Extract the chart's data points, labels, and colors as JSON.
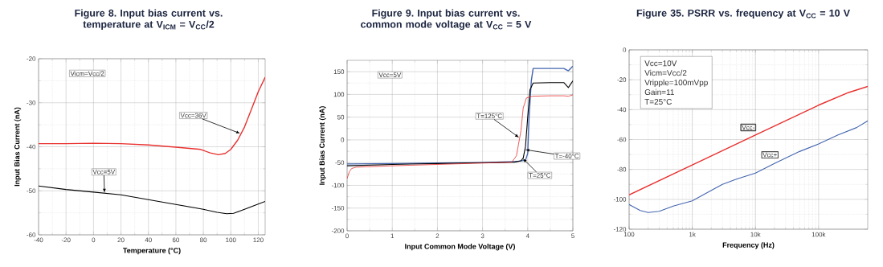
{
  "chart_data": [
    {
      "type": "line",
      "title": "Figure 8. Input bias current vs. temperature at V$_{ICM}$ = V$_{CC}$/2",
      "xlabel": "Temperature (°C)",
      "ylabel": "Input Bias Current (nA)",
      "xlim": [
        -40,
        125
      ],
      "xticks": [
        -40,
        -20,
        0,
        20,
        40,
        60,
        80,
        100,
        120
      ],
      "ylim": [
        -60,
        -20
      ],
      "yticks": [
        -60,
        -50,
        -40,
        -30,
        -20
      ],
      "grid": true,
      "series": [
        {
          "color": "#e8312f",
          "x": [
            -40,
            -20,
            0,
            20,
            40,
            60,
            78,
            85,
            91,
            96,
            100,
            105,
            110,
            115,
            120,
            125
          ],
          "values": [
            -39.3,
            -39.3,
            -39.2,
            -39.3,
            -39.6,
            -40.1,
            -40.6,
            -41.4,
            -41.8,
            -41.5,
            -40.6,
            -38.5,
            -35.5,
            -31.5,
            -27.5,
            -24.2
          ]
        },
        {
          "color": "#000000",
          "x": [
            -40,
            -20,
            0,
            20,
            40,
            60,
            80,
            90,
            97,
            102,
            110,
            125
          ],
          "values": [
            -48.9,
            -49.7,
            -50.3,
            -50.9,
            -52,
            -53.1,
            -54.2,
            -54.9,
            -55.2,
            -55.1,
            -54.2,
            -52.4
          ]
        }
      ],
      "annotations": [
        "Vicm=Vcc/2",
        {
          "text": "Vcc=36V",
          "x": 107,
          "y": -37
        },
        {
          "text": "Vcc=5V",
          "x": 8,
          "y": -50.5
        }
      ]
    },
    {
      "type": "line",
      "title": "Figure 9. Input bias current vs. common mode voltage at V$_{CC}$ = 5 V",
      "xlabel": "Input Common Mode Voltage (V)",
      "ylabel": "Input Bias Current (nA)",
      "xlim": [
        0,
        5
      ],
      "xticks": [
        0,
        1,
        2,
        3,
        4,
        5
      ],
      "ylim": [
        -200,
        175
      ],
      "yticks": [
        -200,
        -150,
        -100,
        -50,
        0,
        50,
        100,
        150
      ],
      "grid": true,
      "series": [
        {
          "color": "#4466b0",
          "x": [
            0,
            1,
            2,
            3,
            3.7,
            3.95,
            4.0,
            4.03,
            4.08,
            4.12,
            4.5,
            4.8,
            4.9,
            5
          ],
          "values": [
            -53,
            -52,
            -51,
            -50,
            -48,
            -45,
            -30,
            50,
            130,
            157,
            157,
            157,
            152,
            162
          ]
        },
        {
          "color": "#000000",
          "x": [
            0,
            1,
            2,
            3,
            3.7,
            3.85,
            3.9,
            3.95,
            4.0,
            4.05,
            4.12,
            4.5,
            4.8,
            4.9,
            5
          ],
          "values": [
            -57,
            -54,
            -52,
            -50,
            -49,
            -46,
            -40,
            -15,
            50,
            110,
            125,
            126,
            126,
            115,
            130
          ]
        },
        {
          "color": "#e8312f",
          "x": [
            0,
            0.05,
            0.1,
            0.2,
            1,
            2,
            3,
            3.65,
            3.75,
            3.85,
            3.9,
            3.97,
            4.1,
            4.5,
            4.8,
            4.9,
            5
          ],
          "values": [
            -85,
            -70,
            -63,
            -60,
            -57,
            -54,
            -51,
            -49,
            -35,
            20,
            70,
            92,
            96,
            97,
            97,
            96,
            99
          ]
        }
      ],
      "annotations": [
        "Vcc=5V",
        {
          "text": "T=125°C",
          "x": 3.81,
          "y": 5
        },
        {
          "text": "T=-40°C",
          "x": 3.94,
          "y": -21.5
        },
        {
          "text": "T=25°C",
          "x": 3.89,
          "y": -40.7
        }
      ]
    },
    {
      "type": "line",
      "title": "Figure 35. PSRR vs. frequency at V$_{CC}$ = 10 V",
      "xlabel": "Frequency (Hz)",
      "log": "x",
      "xlim": [
        100,
        600000
      ],
      "xticks": [
        100,
        {
          "value": 1000,
          "label": "1k"
        },
        {
          "value": 10000,
          "label": "10k"
        },
        {
          "value": 100000,
          "label": "100k"
        }
      ],
      "ylim": [
        -120,
        0
      ],
      "yticks": [
        -120,
        -100,
        -80,
        -60,
        -40,
        -20,
        0
      ],
      "grid": true,
      "series": [
        {
          "name": "Vcc-",
          "color": "#e8312f",
          "x": [
            100,
            1000,
            10000,
            100000,
            300000,
            600000
          ],
          "values": [
            -97,
            -77,
            -57,
            -37,
            -28.5,
            -24.5
          ]
        },
        {
          "name": "Vcc+",
          "color": "#4466b0",
          "x": [
            100,
            150,
            200,
            300,
            500,
            1000,
            2000,
            3000,
            5000,
            10000,
            20000,
            50000,
            100000,
            200000,
            400000,
            600000
          ],
          "values": [
            -103.5,
            -107.5,
            -108.8,
            -108,
            -104.5,
            -101,
            -94,
            -90,
            -86.5,
            -82.5,
            -76,
            -68,
            -63,
            -57,
            -52,
            -47.5
          ]
        }
      ],
      "annotations": [
        "Vcc=10V",
        "Vicm=Vcc/2",
        "Vripple=100mVpp",
        "Gain=11",
        "T=25°C"
      ]
    }
  ]
}
